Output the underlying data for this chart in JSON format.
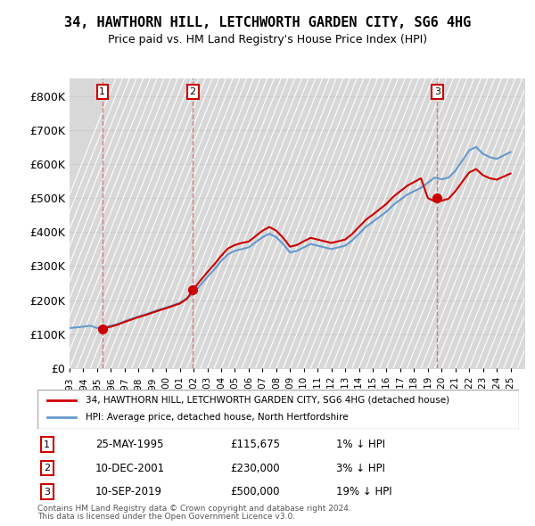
{
  "title": "34, HAWTHORN HILL, LETCHWORTH GARDEN CITY, SG6 4HG",
  "subtitle": "Price paid vs. HM Land Registry's House Price Index (HPI)",
  "legend_label_red": "34, HAWTHORN HILL, LETCHWORTH GARDEN CITY, SG6 4HG (detached house)",
  "legend_label_blue": "HPI: Average price, detached house, North Hertfordshire",
  "transactions": [
    {
      "num": 1,
      "date_str": "25-MAY-1995",
      "price": 115675,
      "pct": "1%",
      "year": 1995.38
    },
    {
      "num": 2,
      "date_str": "10-DEC-2001",
      "price": 230000,
      "pct": "3%",
      "year": 2001.94
    },
    {
      "num": 3,
      "date_str": "10-SEP-2019",
      "price": 500000,
      "pct": "19%",
      "year": 2019.69
    }
  ],
  "footnote1": "Contains HM Land Registry data © Crown copyright and database right 2024.",
  "footnote2": "This data is licensed under the Open Government Licence v3.0.",
  "xmin": 1993,
  "xmax": 2026,
  "ymin": 0,
  "ymax": 850000,
  "yticks": [
    0,
    100000,
    200000,
    300000,
    400000,
    500000,
    600000,
    700000,
    800000
  ],
  "ytick_labels": [
    "£0",
    "£100K",
    "£200K",
    "£300K",
    "£400K",
    "£500K",
    "£600K",
    "£700K",
    "£800K"
  ],
  "background_color": "#f0f0f0",
  "hatch_color": "#d8d8d8",
  "grid_color": "#cccccc",
  "red_line_color": "#cc0000",
  "blue_line_color": "#6699cc",
  "dashed_line_color": "#cc6666",
  "hpi_data": {
    "years": [
      1993.0,
      1993.5,
      1994.0,
      1994.5,
      1995.0,
      1995.5,
      1996.0,
      1996.5,
      1997.0,
      1997.5,
      1998.0,
      1998.5,
      1999.0,
      1999.5,
      2000.0,
      2000.5,
      2001.0,
      2001.5,
      2002.0,
      2002.5,
      2003.0,
      2003.5,
      2004.0,
      2004.5,
      2005.0,
      2005.5,
      2006.0,
      2006.5,
      2007.0,
      2007.5,
      2008.0,
      2008.5,
      2009.0,
      2009.5,
      2010.0,
      2010.5,
      2011.0,
      2011.5,
      2012.0,
      2012.5,
      2013.0,
      2013.5,
      2014.0,
      2014.5,
      2015.0,
      2015.5,
      2016.0,
      2016.5,
      2017.0,
      2017.5,
      2018.0,
      2018.5,
      2019.0,
      2019.5,
      2020.0,
      2020.5,
      2021.0,
      2021.5,
      2022.0,
      2022.5,
      2023.0,
      2023.5,
      2024.0,
      2024.5,
      2025.0
    ],
    "values": [
      118000,
      120000,
      122000,
      125000,
      118000,
      120000,
      125000,
      130000,
      138000,
      145000,
      152000,
      158000,
      165000,
      172000,
      178000,
      185000,
      192000,
      205000,
      220000,
      245000,
      268000,
      290000,
      315000,
      335000,
      345000,
      350000,
      355000,
      370000,
      385000,
      395000,
      385000,
      365000,
      340000,
      345000,
      355000,
      365000,
      360000,
      355000,
      350000,
      355000,
      360000,
      375000,
      395000,
      415000,
      430000,
      445000,
      460000,
      480000,
      495000,
      510000,
      520000,
      530000,
      545000,
      560000,
      555000,
      560000,
      580000,
      610000,
      640000,
      650000,
      630000,
      620000,
      615000,
      625000,
      635000
    ]
  },
  "price_data": {
    "years": [
      1995.38,
      1995.5,
      1996.0,
      1996.5,
      1997.0,
      1997.5,
      1998.0,
      1998.5,
      1999.0,
      1999.5,
      2000.0,
      2000.5,
      2001.0,
      2001.5,
      2001.94,
      2002.0,
      2002.5,
      2003.0,
      2003.5,
      2004.0,
      2004.5,
      2005.0,
      2005.5,
      2006.0,
      2006.5,
      2007.0,
      2007.5,
      2008.0,
      2008.5,
      2009.0,
      2009.5,
      2010.0,
      2010.5,
      2011.0,
      2011.5,
      2012.0,
      2012.5,
      2013.0,
      2013.5,
      2014.0,
      2014.5,
      2015.0,
      2015.5,
      2016.0,
      2016.5,
      2017.0,
      2017.5,
      2018.0,
      2018.5,
      2019.0,
      2019.5,
      2019.69,
      2020.0,
      2020.5,
      2021.0,
      2021.5,
      2022.0,
      2022.5,
      2023.0,
      2023.5,
      2024.0,
      2024.5,
      2025.0
    ],
    "values": [
      115675,
      118000,
      122000,
      128000,
      136000,
      143000,
      150000,
      156000,
      163000,
      170000,
      176000,
      183000,
      190000,
      203000,
      230000,
      232000,
      258000,
      282000,
      305000,
      330000,
      352000,
      362000,
      368000,
      372000,
      388000,
      404000,
      415000,
      404000,
      383000,
      357000,
      362000,
      373000,
      383000,
      378000,
      373000,
      368000,
      373000,
      378000,
      394000,
      415000,
      436000,
      451000,
      467000,
      483000,
      504000,
      520000,
      536000,
      547000,
      558000,
      500000,
      490000,
      500000,
      492000,
      498000,
      520000,
      548000,
      575000,
      585000,
      567000,
      558000,
      554000,
      563000,
      572000
    ]
  }
}
